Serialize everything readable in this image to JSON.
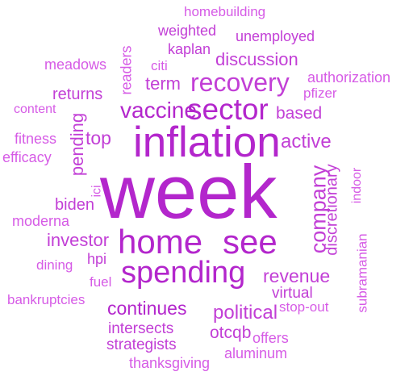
{
  "colors": {
    "primary": "#c23fd6",
    "secondary": "#d65be6",
    "strong": "#b326cc"
  },
  "words": {
    "week": "week",
    "inflation": "inflation",
    "home": "home",
    "see": "see",
    "spending": "spending",
    "recovery": "recovery",
    "sector": "sector",
    "vaccine": "vaccine",
    "company": "company",
    "continues": "continues",
    "political": "political",
    "discussion": "discussion",
    "term": "term",
    "active": "active",
    "revenue": "revenue",
    "top": "top",
    "investor": "investor",
    "pending": "pending",
    "returns": "returns",
    "based": "based",
    "strategists": "strategists",
    "intersects": "intersects",
    "otcqb": "otcqb",
    "virtual": "virtual",
    "discretionary": "discretionary",
    "homebuilding": "homebuilding",
    "weighted": "weighted",
    "unemployed": "unemployed",
    "kaplan": "kaplan",
    "citi": "citi",
    "meadows": "meadows",
    "readers": "readers",
    "authorization": "authorization",
    "pfizer": "pfizer",
    "content": "content",
    "fitness": "fitness",
    "efficacy": "efficacy",
    "ici": "ici",
    "biden": "biden",
    "moderna": "moderna",
    "indoor": "indoor",
    "hpi": "hpi",
    "dining": "dining",
    "fuel": "fuel",
    "bankruptcies": "bankruptcies",
    "subramanian": "subramanian",
    "stop_out": "stop-out",
    "offers": "offers",
    "aluminum": "aluminum",
    "thanksgiving": "thanksgiving"
  }
}
